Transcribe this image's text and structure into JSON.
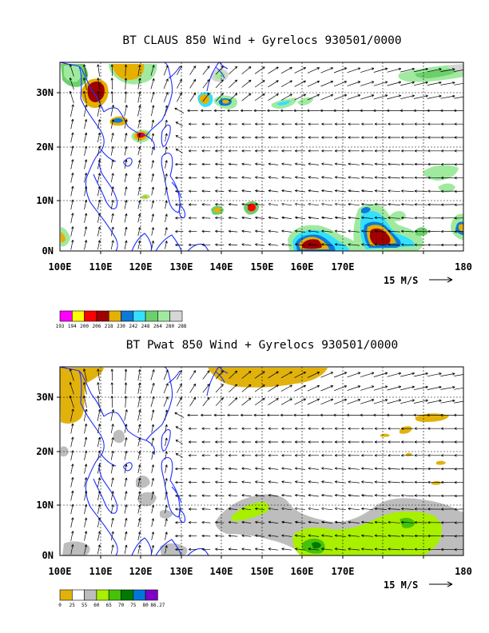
{
  "panels": [
    {
      "title": "BT CLAUS 850 Wind + Gyrelocs 930501/0000",
      "xticks": [
        "100E",
        "110E",
        "120E",
        "130E",
        "140E",
        "150E",
        "160E",
        "170E",
        "180"
      ],
      "yticks": [
        "0N",
        "10N",
        "20N",
        "30N"
      ],
      "vector_key": "15 M/S",
      "colorbar": {
        "labels": [
          "193",
          "194",
          "200",
          "206",
          "218",
          "230",
          "242",
          "248",
          "264",
          "280",
          "288"
        ],
        "colors": [
          "#ff00ff",
          "#ffff00",
          "#ff0000",
          "#a00000",
          "#e6b000",
          "#0b7ad8",
          "#33e0ff",
          "#6ccf6c",
          "#a0eaa0",
          "#d6d6d6"
        ]
      }
    },
    {
      "title": "BT Pwat 850 Wind + Gyrelocs 930501/0000",
      "xticks": [
        "100E",
        "110E",
        "120E",
        "130E",
        "140E",
        "150E",
        "160E",
        "170E",
        "180"
      ],
      "yticks": [
        "0N",
        "10N",
        "20N",
        "30N"
      ],
      "vector_key": "15 M/S",
      "colorbar": {
        "labels": [
          "0",
          "25",
          "55",
          "60",
          "65",
          "70",
          "75",
          "80",
          "86.27"
        ],
        "colors": [
          "#e1b20c",
          "#ffffff",
          "#bdbdbd",
          "#a8ef00",
          "#46c20b",
          "#007a00",
          "#0077d6",
          "#7e00c8"
        ]
      }
    }
  ]
}
